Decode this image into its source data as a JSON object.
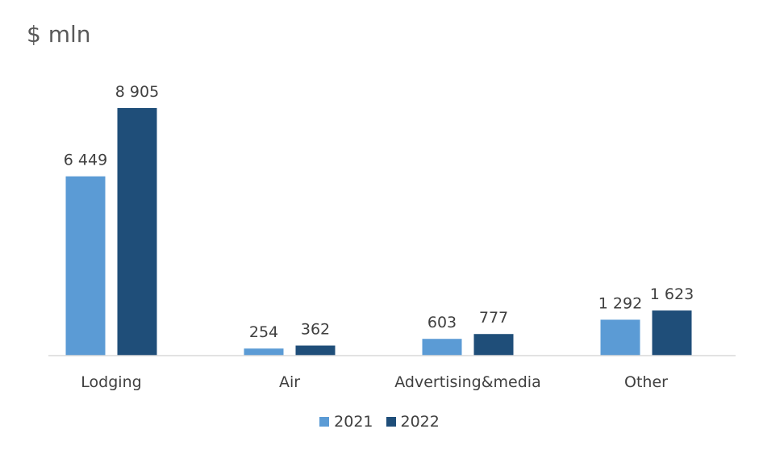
{
  "chart_data": {
    "type": "bar",
    "unit_label": "$ mln",
    "categories": [
      "Lodging",
      "Air",
      "Advertising&media",
      "Other"
    ],
    "series": [
      {
        "name": "2021",
        "color": "#5b9bd5",
        "values": [
          6449,
          254,
          603,
          1292
        ],
        "labels": [
          "6 449",
          "254",
          "603",
          "1 292"
        ]
      },
      {
        "name": "2022",
        "color": "#1f4e79",
        "values": [
          8905,
          362,
          777,
          1623
        ],
        "labels": [
          "8 905",
          "362",
          "777",
          "1 623"
        ]
      }
    ],
    "ylim": [
      0,
      10000
    ],
    "grid": false,
    "legend_position": "bottom"
  }
}
